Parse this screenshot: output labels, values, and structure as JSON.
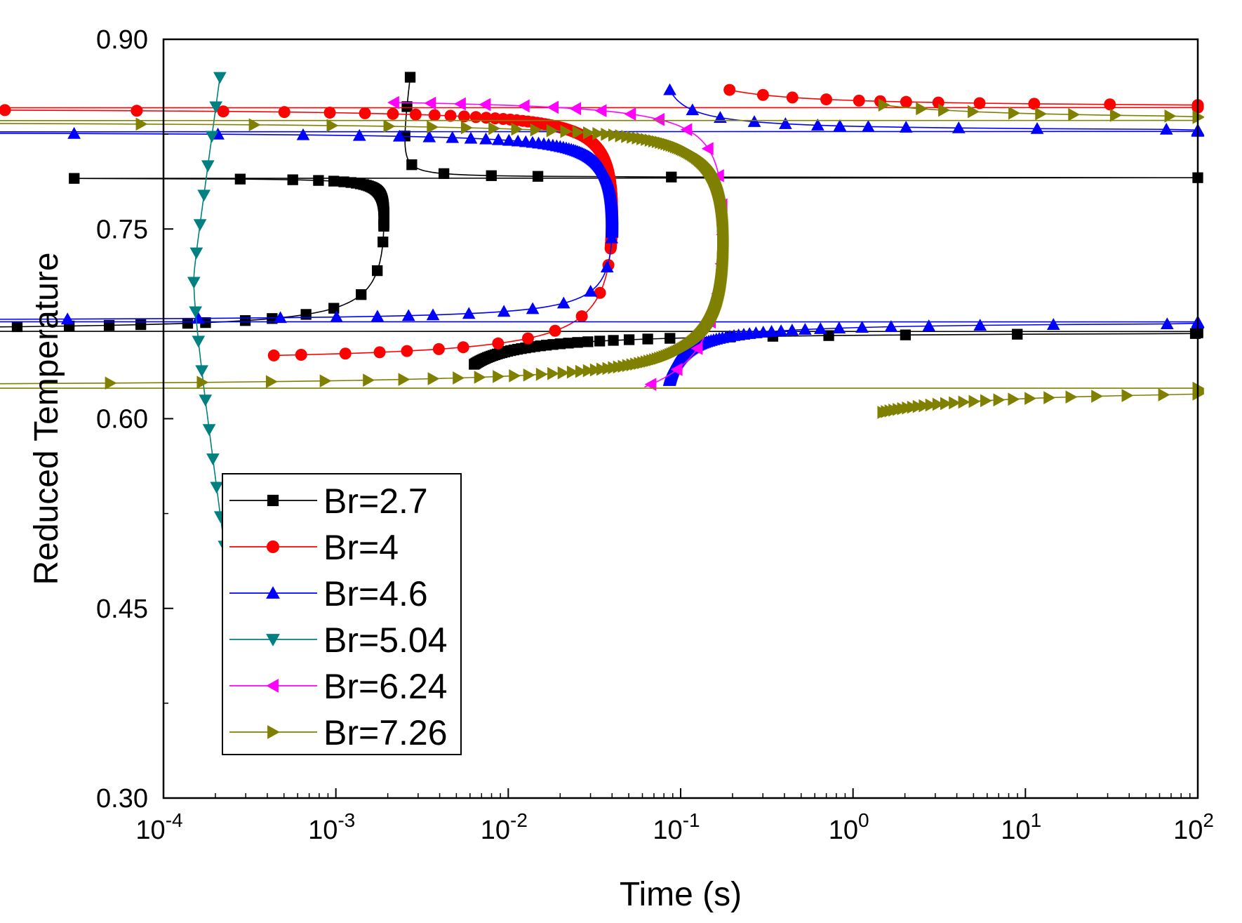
{
  "chart_data": {
    "type": "scatter",
    "title": "",
    "xlabel": "Time (s)",
    "ylabel": "Reduced Temperature",
    "xscale": "log",
    "xlim": [
      0.0001,
      100
    ],
    "ylim": [
      0.3,
      0.9
    ],
    "xticks": [
      {
        "value": 0.0001,
        "base": "10",
        "exp": "-4"
      },
      {
        "value": 0.001,
        "base": "10",
        "exp": "-3"
      },
      {
        "value": 0.01,
        "base": "10",
        "exp": "-2"
      },
      {
        "value": 0.1,
        "base": "10",
        "exp": "-1"
      },
      {
        "value": 1,
        "base": "10",
        "exp": "0"
      },
      {
        "value": 10,
        "base": "10",
        "exp": "1"
      },
      {
        "value": 100,
        "base": "10",
        "exp": "2"
      }
    ],
    "yticks": [
      {
        "value": 0.3,
        "label": "0.30"
      },
      {
        "value": 0.45,
        "label": "0.45"
      },
      {
        "value": 0.6,
        "label": "0.60"
      },
      {
        "value": 0.75,
        "label": "0.75"
      },
      {
        "value": 0.9,
        "label": "0.90"
      }
    ],
    "legend_position": "lower-left",
    "series": [
      {
        "name": "Br=2.7",
        "color": "#000000",
        "marker": "square",
        "nose": {
          "t": 0.0019,
          "y": 0.76
        },
        "upper": {
          "y0": 0.898,
          "k": 0.0395
        },
        "lower": {
          "y0": 0.612,
          "k": -0.021
        },
        "y_top": 0.87,
        "y_bottom": 0.643
      },
      {
        "name": "Br=4",
        "color": "#ff0000",
        "marker": "circle",
        "nose": {
          "t": 0.04,
          "y": 0.762
        },
        "upper": {
          "y0": 0.92,
          "k": 0.053
        },
        "lower": {
          "y0": 0.58,
          "k": -0.0455
        },
        "y_top": 0.86,
        "y_bottom": 0.65
      },
      {
        "name": "Br=4.6",
        "color": "#0000ff",
        "marker": "triangle-up",
        "nose": {
          "t": 0.04,
          "y": 0.755
        },
        "upper": {
          "y0": 0.89,
          "k": 0.045
        },
        "lower": {
          "y0": 0.607,
          "k": -0.05
        },
        "y_top": 0.86,
        "y_bottom": 0.63
      },
      {
        "name": "Br=5.04",
        "color": "#008080",
        "marker": "triangle-down",
        "nose": {
          "t": 0.00015,
          "y": 0.71
        },
        "upper": {
          "y0": 0.93,
          "k": 0.06
        },
        "lower": {
          "y0": 0.465,
          "k": -0.0745
        },
        "y_top": 0.87,
        "y_bottom": 0.494
      },
      {
        "name": "Br=6.24",
        "color": "#ff00ff",
        "marker": "triangle-left",
        "nose": {
          "t": 0.175,
          "y": 0.755
        },
        "upper": {
          "y0": 0.938,
          "k": 0.11
        },
        "lower": {
          "y0": 0.512,
          "k": -0.1
        },
        "y_top": 0.85,
        "y_bottom": 0.625
      },
      {
        "name": "Br=7.26",
        "color": "#808000",
        "marker": "triangle-right",
        "nose": {
          "t": 0.175,
          "y": 0.74
        },
        "upper": {
          "y0": 0.915,
          "k": 0.105
        },
        "lower": {
          "y0": 0.53,
          "k": -0.125
        },
        "y_top": 0.848,
        "y_bottom": 0.605
      }
    ]
  }
}
